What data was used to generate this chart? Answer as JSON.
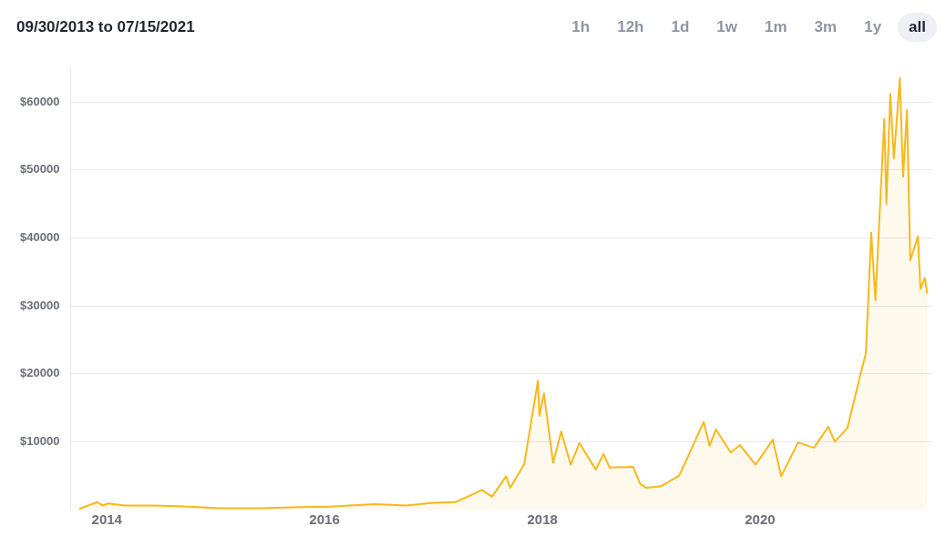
{
  "chart_data": {
    "type": "area",
    "title": "09/30/2013 to 07/15/2021",
    "annotations": [
      "1h",
      "12h",
      "1d",
      "1w",
      "1m",
      "3m",
      "1y",
      "all"
    ],
    "x": [
      "2013-09-30",
      "2013-11-30",
      "2013-12-18",
      "2014-01-05",
      "2014-03-01",
      "2014-06-01",
      "2014-09-01",
      "2015-01-15",
      "2015-06-01",
      "2015-11-05",
      "2016-01-01",
      "2016-06-18",
      "2016-10-01",
      "2017-01-01",
      "2017-03-15",
      "2017-05-25",
      "2017-06-12",
      "2017-07-16",
      "2017-09-01",
      "2017-09-15",
      "2017-11-01",
      "2017-12-17",
      "2017-12-22",
      "2018-01-06",
      "2018-02-06",
      "2018-03-05",
      "2018-04-06",
      "2018-05-05",
      "2018-06-29",
      "2018-07-25",
      "2018-08-14",
      "2018-11-01",
      "2018-11-25",
      "2018-12-15",
      "2019-02-01",
      "2019-04-05",
      "2019-06-26",
      "2019-07-16",
      "2019-08-06",
      "2019-09-25",
      "2019-10-26",
      "2019-12-17",
      "2020-02-13",
      "2020-03-12",
      "2020-05-08",
      "2020-06-30",
      "2020-08-17",
      "2020-09-08",
      "2020-10-20",
      "2020-11-30",
      "2020-12-21",
      "2021-01-08",
      "2021-01-22",
      "2021-02-21",
      "2021-02-28",
      "2021-03-13",
      "2021-03-25",
      "2021-04-14",
      "2021-04-25",
      "2021-05-08",
      "2021-05-19",
      "2021-06-14",
      "2021-06-22",
      "2021-07-07",
      "2021-07-15"
    ],
    "series": [
      {
        "color": "#f7b81c",
        "values": [
          100,
          1100,
          600,
          900,
          600,
          600,
          500,
          200,
          200,
          400,
          400,
          800,
          600,
          1000,
          1100,
          2500,
          2900,
          1900,
          4900,
          3200,
          6700,
          19000,
          13800,
          17100,
          6900,
          11500,
          6600,
          9800,
          5900,
          8200,
          6200,
          6300,
          3800,
          3200,
          3400,
          5000,
          12900,
          9400,
          11800,
          8400,
          9500,
          6600,
          10300,
          4900,
          9900,
          9100,
          12200,
          10000,
          12000,
          19400,
          23000,
          40800,
          30800,
          57500,
          45000,
          61200,
          51700,
          63500,
          49000,
          58800,
          36700,
          40200,
          32500,
          34100,
          31800
        ]
      }
    ],
    "xlim": [
      "2013-09-01",
      "2021-08-01"
    ],
    "xticks": [
      {
        "value": "2014-01-01",
        "label": "2014"
      },
      {
        "value": "2016-01-01",
        "label": "2016"
      },
      {
        "value": "2018-01-01",
        "label": "2018"
      },
      {
        "value": "2020-01-01",
        "label": "2020"
      }
    ],
    "ylim": [
      0,
      65000
    ],
    "yticks": [
      {
        "value": 10000,
        "label": "$10000"
      },
      {
        "value": 20000,
        "label": "$20000"
      },
      {
        "value": 30000,
        "label": "$30000"
      },
      {
        "value": 40000,
        "label": "$40000"
      },
      {
        "value": 50000,
        "label": "$50000"
      },
      {
        "value": 60000,
        "label": "$60000"
      }
    ],
    "grid": "y",
    "legend": false,
    "marker": "none",
    "line_style": "solid"
  }
}
